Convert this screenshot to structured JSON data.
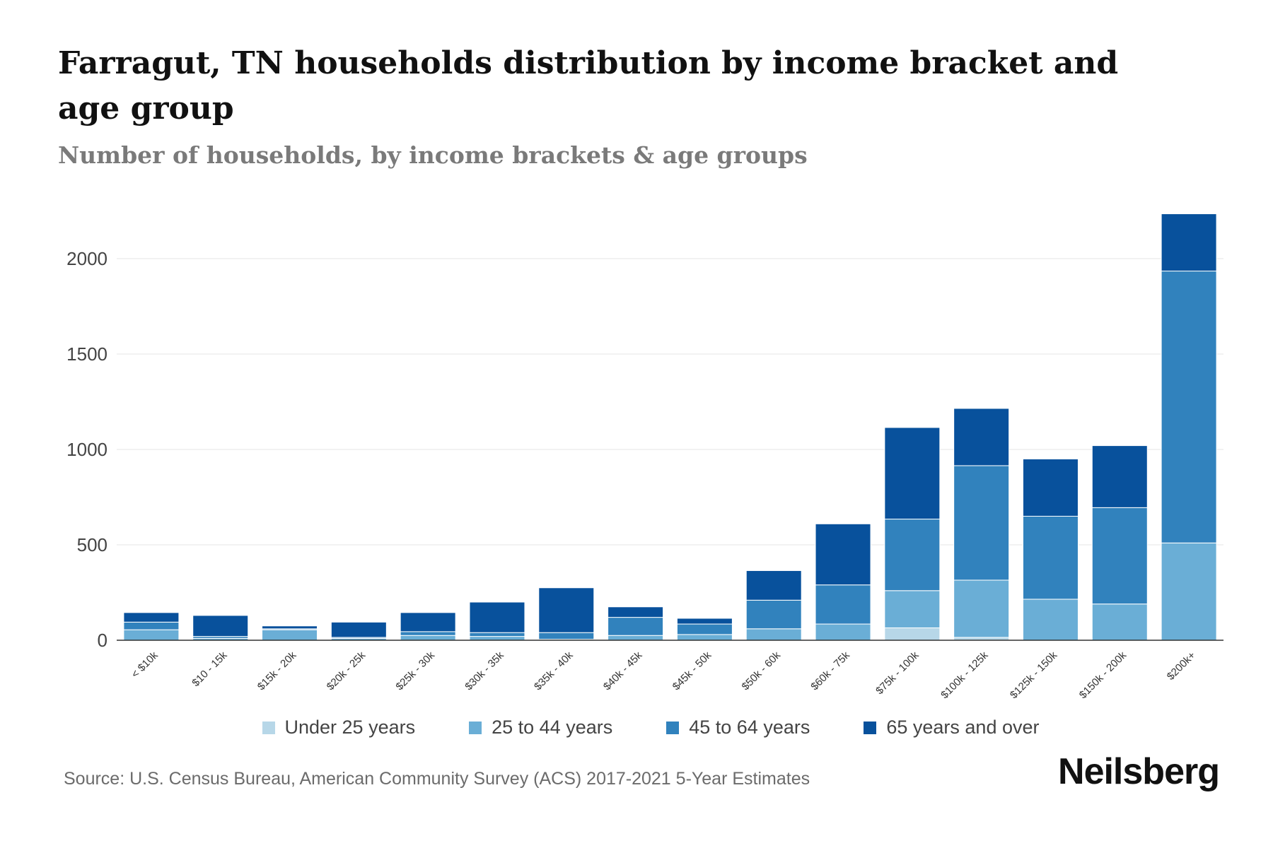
{
  "title": "Farragut, TN households distribution by income bracket and age group",
  "subtitle": "Number of households, by income brackets & age groups",
  "source": "Source: U.S. Census Bureau, American Community Survey (ACS) 2017-2021 5-Year Estimates",
  "brand": "Neilsberg",
  "chart_data": {
    "type": "bar",
    "stacked": true,
    "categories": [
      "< $10k",
      "$10 - 15k",
      "$15k - 20k",
      "$20k - 25k",
      "$25k - 30k",
      "$30k - 35k",
      "$35k - 40k",
      "$40k - 45k",
      "$45k - 50k",
      "$50k - 60k",
      "$60k - 75k",
      "$75k - 100k",
      "$100k - 125k",
      "$125k - 150k",
      "$150k - 200k",
      "$200k+"
    ],
    "series": [
      {
        "name": "Under 25 years",
        "color": "#b7d7e8",
        "values": [
          0,
          0,
          0,
          0,
          0,
          0,
          0,
          0,
          0,
          0,
          0,
          65,
          15,
          0,
          0,
          0
        ]
      },
      {
        "name": "25 to 44 years",
        "color": "#6aaed6",
        "values": [
          55,
          10,
          55,
          10,
          25,
          20,
          5,
          25,
          30,
          60,
          85,
          195,
          300,
          215,
          190,
          510
        ]
      },
      {
        "name": "45 to 64 years",
        "color": "#3182bd",
        "values": [
          40,
          10,
          5,
          5,
          20,
          20,
          35,
          95,
          55,
          150,
          205,
          375,
          600,
          435,
          505,
          1425
        ]
      },
      {
        "name": "65 years and over",
        "color": "#08519c",
        "values": [
          50,
          110,
          15,
          80,
          100,
          160,
          235,
          55,
          30,
          155,
          320,
          480,
          300,
          300,
          325,
          300
        ]
      }
    ],
    "ylim": [
      0,
      2300
    ],
    "yticks": [
      0,
      500,
      1000,
      1500,
      2000
    ],
    "xlabel": "",
    "ylabel": "",
    "grid": true,
    "legend_position": "bottom"
  }
}
